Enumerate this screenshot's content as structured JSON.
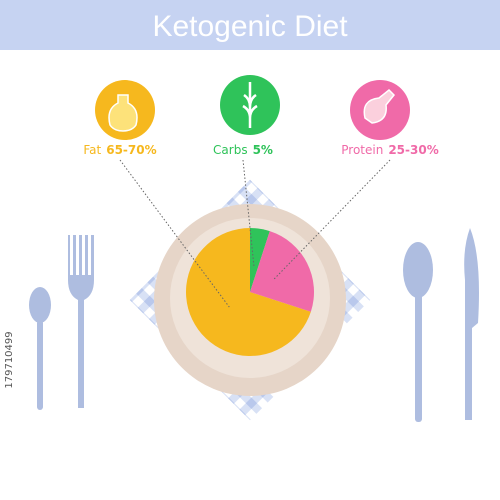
{
  "chart_data": {
    "type": "pie",
    "title": "Ketogenic Diet",
    "categories": [
      "Fat",
      "Carbs",
      "Protein"
    ],
    "values": [
      70,
      5,
      25
    ],
    "value_labels": [
      "65-70%",
      "5%",
      "25-30%"
    ],
    "colors": [
      "#f6b81e",
      "#2fc35a",
      "#f06aa8"
    ]
  },
  "stock_id": "179710499"
}
